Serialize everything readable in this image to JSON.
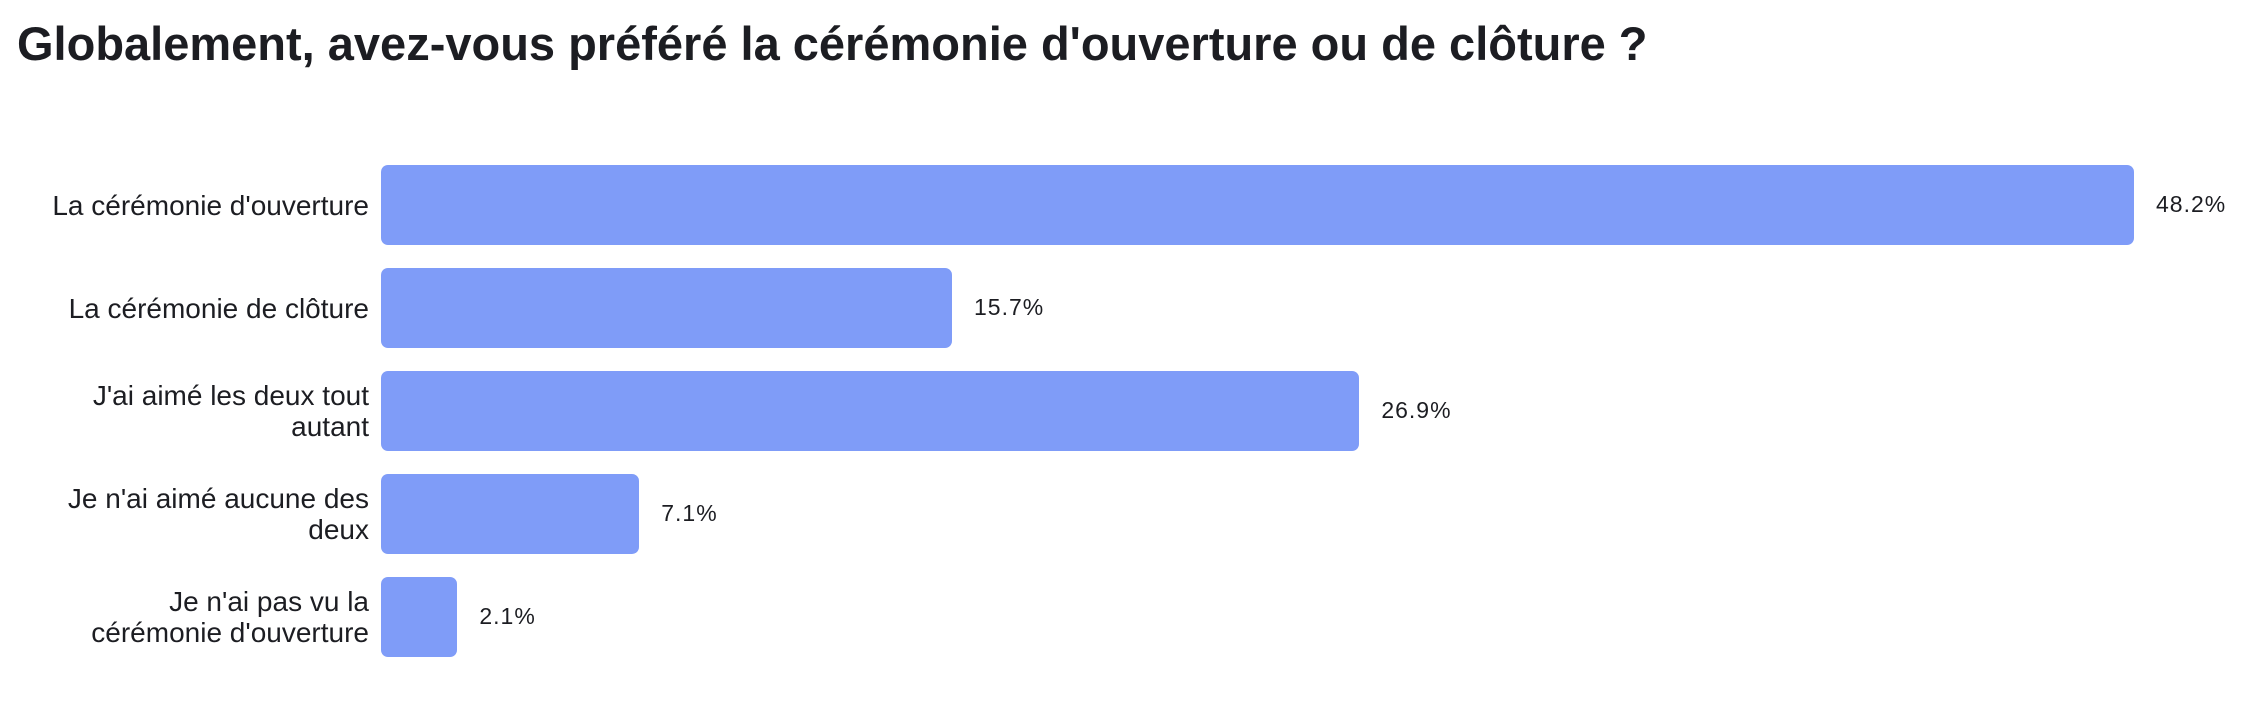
{
  "chart_data": {
    "type": "bar",
    "orientation": "horizontal",
    "title": "Globalement, avez-vous préféré la cérémonie d'ouverture ou de clôture ?",
    "categories": [
      "La cérémonie d'ouverture",
      "La cérémonie de clôture",
      "J'ai aimé les deux tout autant",
      "Je n'ai aimé aucune des deux",
      "Je n'ai pas vu la cérémonie d'ouverture"
    ],
    "values": [
      48.2,
      15.7,
      26.9,
      7.1,
      2.1
    ],
    "value_labels": [
      "48.2%",
      "15.7%",
      "26.9%",
      "7.1%",
      "2.1%"
    ],
    "color": "#7f9cf8"
  }
}
